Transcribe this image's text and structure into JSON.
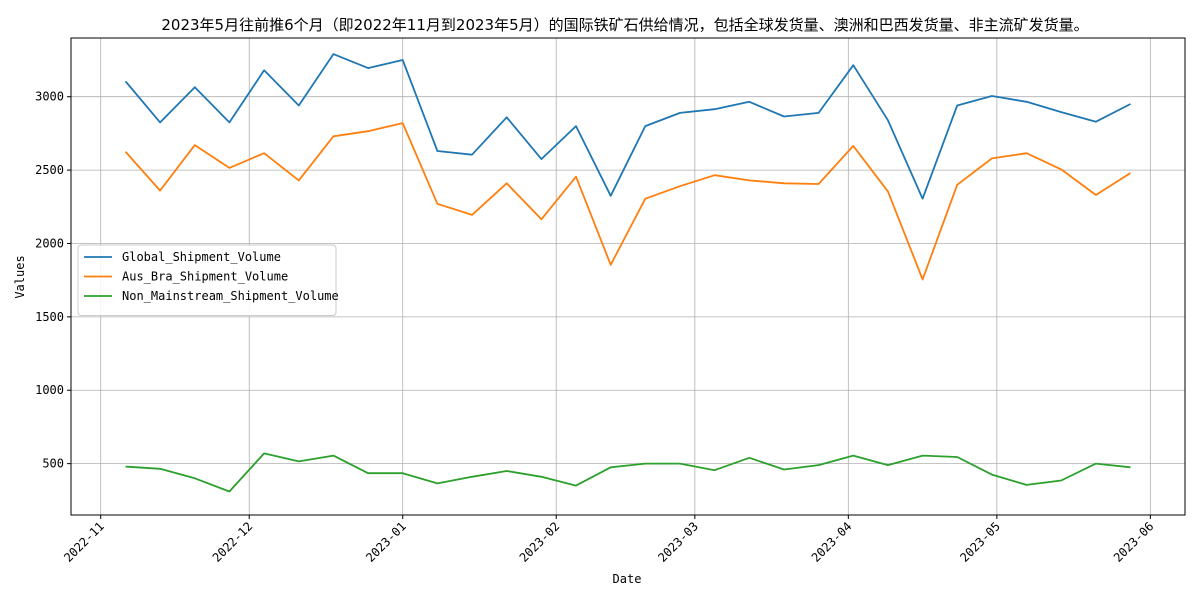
{
  "chart_data": {
    "type": "line",
    "title": "2023年5月往前推6个月（即2022年11月到2023年5月）的国际铁矿石供给情况，包括全球发货量、澳洲和巴西发货量、非主流矿发货量。",
    "xlabel": "Date",
    "ylabel": "Values",
    "grid": true,
    "legend_position": "center-left",
    "x": [
      "2022-11-06",
      "2022-11-13",
      "2022-11-20",
      "2022-11-27",
      "2022-12-04",
      "2022-12-11",
      "2022-12-18",
      "2022-12-25",
      "2023-01-01",
      "2023-01-08",
      "2023-01-15",
      "2023-01-22",
      "2023-01-29",
      "2023-02-05",
      "2023-02-12",
      "2023-02-19",
      "2023-02-26",
      "2023-03-05",
      "2023-03-12",
      "2023-03-19",
      "2023-03-26",
      "2023-04-02",
      "2023-04-09",
      "2023-04-16",
      "2023-04-23",
      "2023-04-30",
      "2023-05-07",
      "2023-05-14",
      "2023-05-21",
      "2023-05-28"
    ],
    "xlim": [
      "2022-10-26",
      "2023-06-08"
    ],
    "ylim": [
      150,
      3400
    ],
    "x_ticks": [
      "2022-11",
      "2022-12",
      "2023-01",
      "2023-02",
      "2023-03",
      "2023-04",
      "2023-05",
      "2023-06"
    ],
    "x_tick_dates": [
      "2022-11-01",
      "2022-12-01",
      "2023-01-01",
      "2023-02-01",
      "2023-03-01",
      "2023-04-01",
      "2023-05-01",
      "2023-06-01"
    ],
    "y_ticks": [
      500,
      1000,
      1500,
      2000,
      2500,
      3000
    ],
    "series": [
      {
        "name": "Global_Shipment_Volume",
        "color": "#1f77b4",
        "values": [
          3105,
          2825,
          3065,
          2825,
          3180,
          2940,
          3290,
          3195,
          3250,
          2630,
          2605,
          2860,
          2575,
          2800,
          2325,
          2800,
          2890,
          2915,
          2965,
          2865,
          2890,
          3215,
          2840,
          2305,
          2940,
          3005,
          2965,
          2895,
          2830,
          2950
        ]
      },
      {
        "name": "Aus_Bra_Shipment_Volume",
        "color": "#ff7f0e",
        "values": [
          2625,
          2360,
          2670,
          2515,
          2615,
          2430,
          2730,
          2765,
          2820,
          2270,
          2195,
          2410,
          2165,
          2455,
          1855,
          2305,
          2390,
          2465,
          2430,
          2410,
          2405,
          2665,
          2355,
          1755,
          2400,
          2580,
          2615,
          2505,
          2330,
          2480
        ]
      },
      {
        "name": "Non_Mainstream_Shipment_Volume",
        "color": "#2ca02c",
        "values": [
          480,
          465,
          400,
          310,
          570,
          515,
          555,
          435,
          435,
          365,
          410,
          450,
          410,
          350,
          475,
          500,
          500,
          455,
          540,
          460,
          490,
          555,
          490,
          555,
          545,
          425,
          355,
          385,
          500,
          475
        ]
      }
    ]
  }
}
